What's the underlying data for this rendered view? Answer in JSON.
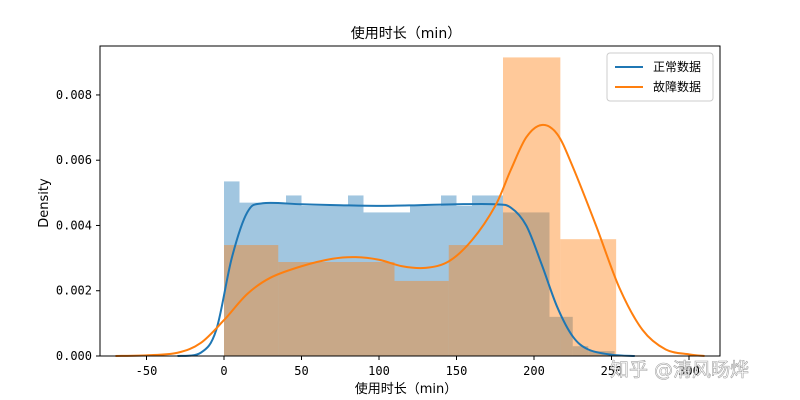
{
  "chart_data": {
    "type": "bar",
    "title": "使用时长（min）",
    "xlabel": "使用时长（min）",
    "ylabel": "Density",
    "xlim": [
      -80,
      320
    ],
    "ylim": [
      0,
      0.0095
    ],
    "x_ticks": [
      -50,
      0,
      50,
      100,
      150,
      200,
      250,
      300
    ],
    "y_ticks": [
      0.0,
      0.002,
      0.004,
      0.006,
      0.008
    ],
    "y_tick_labels": [
      "0.000",
      "0.002",
      "0.004",
      "0.006",
      "0.008"
    ],
    "grid": false,
    "legend_position": "top-right",
    "series": [
      {
        "name": "正常数据",
        "color": "#1f77b4",
        "hist_bins": [
          {
            "x0": 0,
            "x1": 10,
            "density": 0.00535
          },
          {
            "x0": 10,
            "x1": 40,
            "density": 0.0047
          },
          {
            "x0": 40,
            "x1": 50,
            "density": 0.00492
          },
          {
            "x0": 50,
            "x1": 80,
            "density": 0.0046
          },
          {
            "x0": 80,
            "x1": 90,
            "density": 0.00492
          },
          {
            "x0": 90,
            "x1": 120,
            "density": 0.0044
          },
          {
            "x0": 120,
            "x1": 140,
            "density": 0.0046
          },
          {
            "x0": 140,
            "x1": 150,
            "density": 0.00492
          },
          {
            "x0": 150,
            "x1": 160,
            "density": 0.0046
          },
          {
            "x0": 160,
            "x1": 180,
            "density": 0.00492
          },
          {
            "x0": 180,
            "x1": 200,
            "density": 0.0044
          },
          {
            "x0": 200,
            "x1": 210,
            "density": 0.0044
          },
          {
            "x0": 210,
            "x1": 225,
            "density": 0.0012
          },
          {
            "x0": 225,
            "x1": 235,
            "density": 0.0003
          },
          {
            "x0": 235,
            "x1": 252,
            "density": 0.00015
          }
        ],
        "kde": [
          [
            -30,
            0
          ],
          [
            -15,
            0.0001
          ],
          [
            -5,
            0.0008
          ],
          [
            5,
            0.003
          ],
          [
            15,
            0.0044
          ],
          [
            25,
            0.00468
          ],
          [
            50,
            0.00465
          ],
          [
            75,
            0.00462
          ],
          [
            100,
            0.0046
          ],
          [
            125,
            0.00462
          ],
          [
            150,
            0.00465
          ],
          [
            175,
            0.00465
          ],
          [
            185,
            0.00455
          ],
          [
            195,
            0.004
          ],
          [
            205,
            0.0028
          ],
          [
            215,
            0.0015
          ],
          [
            225,
            0.0006
          ],
          [
            235,
            0.0002
          ],
          [
            250,
            4e-05
          ],
          [
            265,
            0
          ]
        ]
      },
      {
        "name": "故障数据",
        "color": "#ff7f0e",
        "hist_bins": [
          {
            "x0": 0,
            "x1": 35,
            "density": 0.0034
          },
          {
            "x0": 35,
            "x1": 110,
            "density": 0.00288
          },
          {
            "x0": 110,
            "x1": 145,
            "density": 0.0023
          },
          {
            "x0": 145,
            "x1": 180,
            "density": 0.0034
          },
          {
            "x0": 180,
            "x1": 217,
            "density": 0.00915
          },
          {
            "x0": 217,
            "x1": 253,
            "density": 0.00358
          }
        ],
        "kde": [
          [
            -70,
            0
          ],
          [
            -50,
            2e-05
          ],
          [
            -30,
            0.0001
          ],
          [
            -15,
            0.0004
          ],
          [
            0,
            0.0011
          ],
          [
            15,
            0.0019
          ],
          [
            30,
            0.0024
          ],
          [
            50,
            0.00275
          ],
          [
            70,
            0.00298
          ],
          [
            85,
            0.00303
          ],
          [
            100,
            0.00295
          ],
          [
            115,
            0.00275
          ],
          [
            130,
            0.0027
          ],
          [
            145,
            0.0029
          ],
          [
            160,
            0.00355
          ],
          [
            175,
            0.0046
          ],
          [
            185,
            0.0057
          ],
          [
            195,
            0.0067
          ],
          [
            205,
            0.00708
          ],
          [
            215,
            0.0068
          ],
          [
            225,
            0.0058
          ],
          [
            240,
            0.004
          ],
          [
            255,
            0.0021
          ],
          [
            270,
            0.0008
          ],
          [
            285,
            0.0002
          ],
          [
            300,
            5e-05
          ],
          [
            310,
            0
          ]
        ]
      }
    ]
  },
  "watermark": "知乎 @清风旸烨"
}
